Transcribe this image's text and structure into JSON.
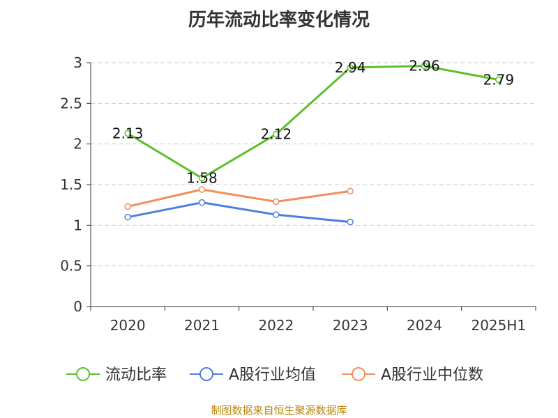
{
  "chart_data": {
    "type": "line",
    "title": "历年流动比率变化情况",
    "categories": [
      "2020",
      "2021",
      "2022",
      "2023",
      "2024",
      "2025H1"
    ],
    "ylim": [
      0,
      3
    ],
    "yticks": [
      0,
      0.5,
      1,
      1.5,
      2,
      2.5,
      3
    ],
    "ytick_labels": [
      "0",
      "0.5",
      "1",
      "1.5",
      "2",
      "2.5",
      "3"
    ],
    "grid": true,
    "legend_position": "bottom",
    "series": [
      {
        "name": "流动比率",
        "color": "#5cbf2a",
        "values": [
          2.13,
          1.58,
          2.12,
          2.94,
          2.96,
          2.79
        ],
        "labels": [
          "2.13",
          "1.58",
          "2.12",
          "2.94",
          "2.96",
          "2.79"
        ],
        "show_labels": true
      },
      {
        "name": "A股行业均值",
        "color": "#4e7fdb",
        "values": [
          1.1,
          1.28,
          1.13,
          1.04,
          null,
          null
        ],
        "show_labels": false
      },
      {
        "name": "A股行业中位数",
        "color": "#f28e5a",
        "values": [
          1.23,
          1.44,
          1.29,
          1.42,
          null,
          null
        ],
        "show_labels": false
      }
    ]
  },
  "footer": "制图数据来自恒生聚源数据库"
}
